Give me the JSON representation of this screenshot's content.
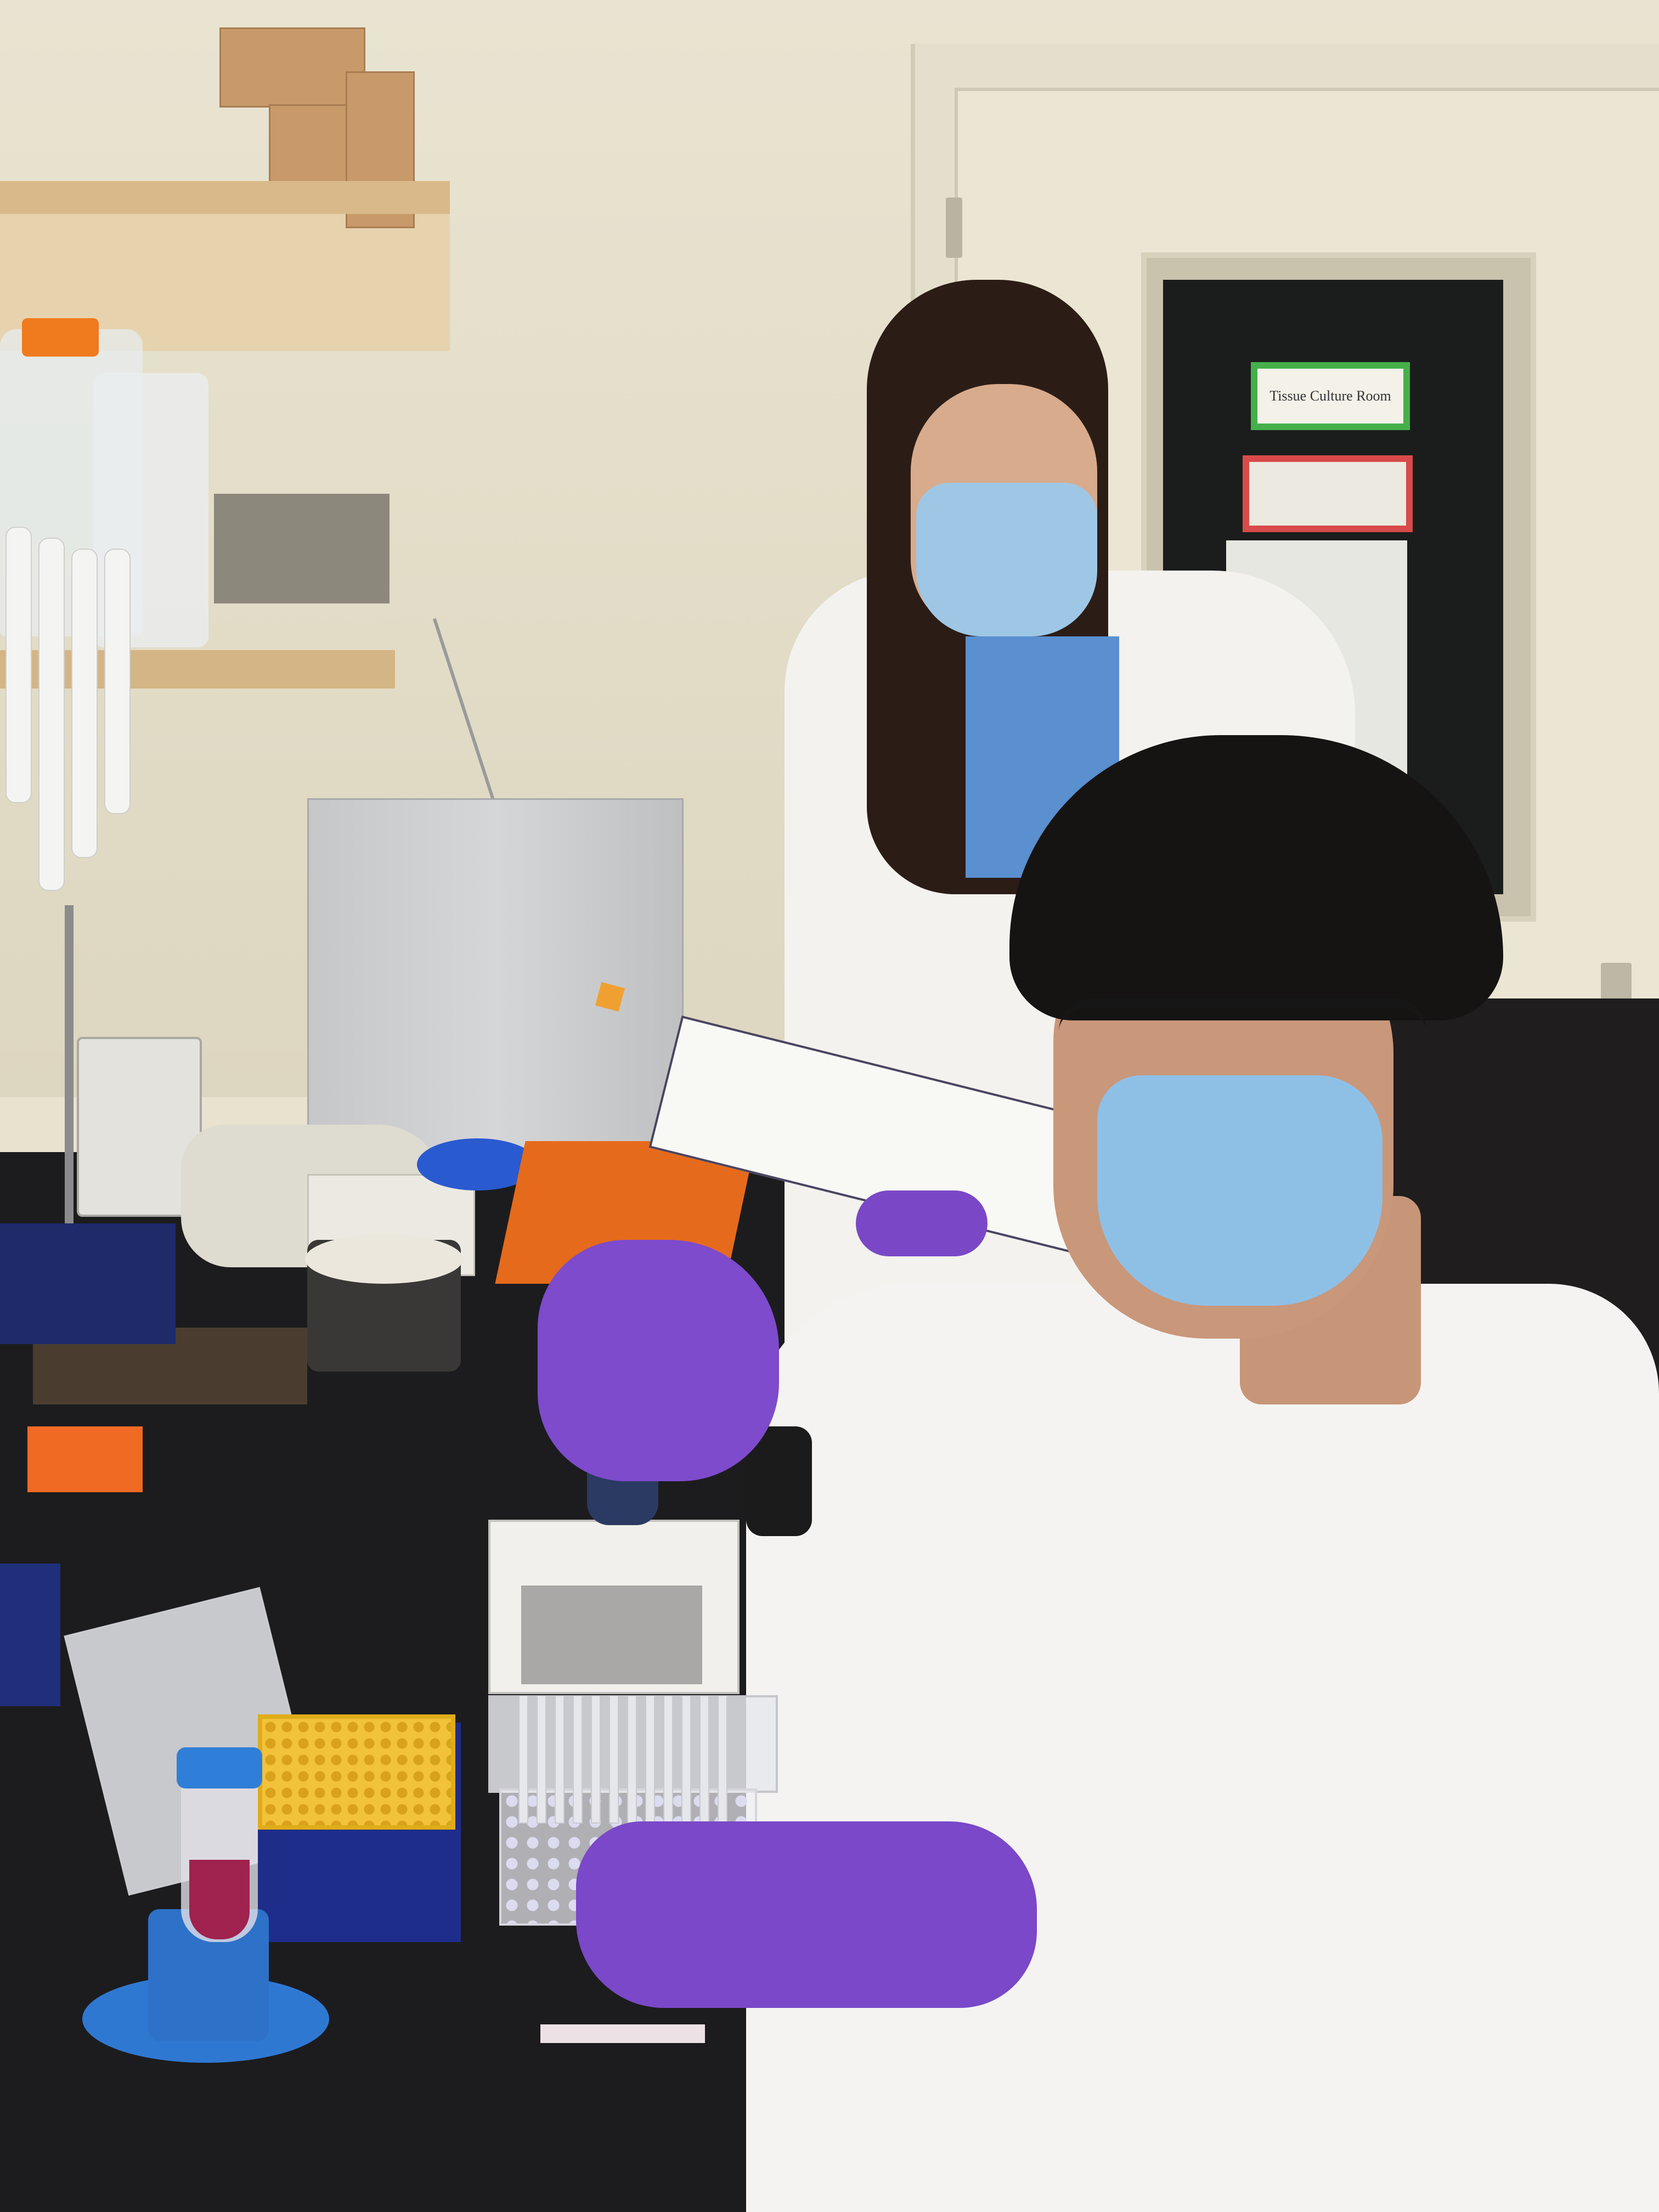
{
  "scene": {
    "description_type": "photograph",
    "door_sign": {
      "text": "Tissue Culture Room"
    }
  },
  "colors": {
    "wall": "#e9e4d1",
    "bench": "#1c1c1e",
    "glove": "#7d4bcc",
    "lab_coat": "#f4f3f1",
    "mask": "#8ec0e6",
    "tip_box": "#f2c23a",
    "sign_border": "#45b04a"
  }
}
